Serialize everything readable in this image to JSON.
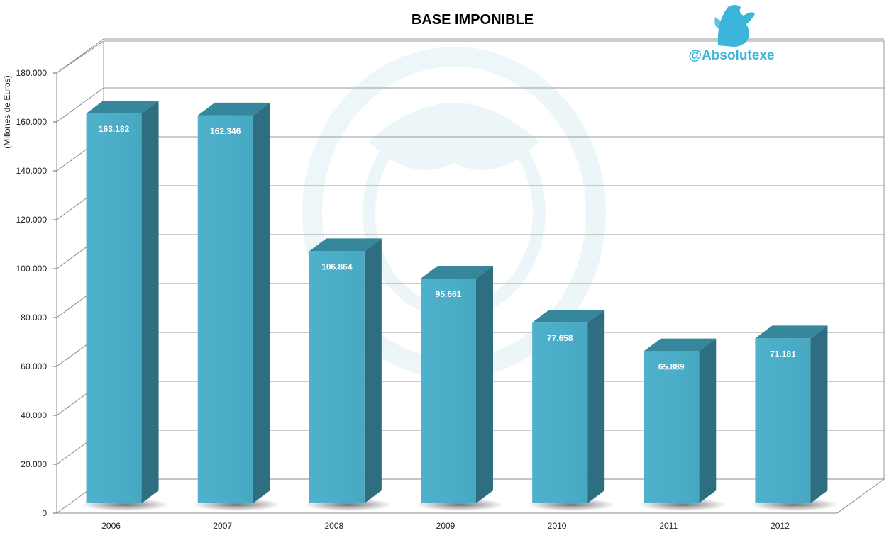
{
  "chart_data": {
    "type": "bar",
    "title": "BASE IMPONIBLE",
    "ylabel": "(Millones de Euros)",
    "xlabel": "",
    "categories": [
      "2006",
      "2007",
      "2008",
      "2009",
      "2010",
      "2011",
      "2012"
    ],
    "values": [
      163182,
      162346,
      106864,
      95661,
      77658,
      65889,
      71181
    ],
    "data_labels": [
      "163.182",
      "162.346",
      "106.864",
      "95.661",
      "77.658",
      "65.889",
      "71.181"
    ],
    "ylim": [
      0,
      180000
    ],
    "yticks": [
      0,
      20000,
      40000,
      60000,
      80000,
      100000,
      120000,
      140000,
      160000,
      180000
    ],
    "ytick_labels": [
      "0",
      "20.000",
      "40.000",
      "60.000",
      "80.000",
      "100.000",
      "120.000",
      "140.000",
      "160.000",
      "180.000"
    ],
    "grid": true,
    "style": "3d-column",
    "colors": {
      "bar_front": "#4BACC6",
      "bar_side": "#2E6E80",
      "bar_top": "#36879C",
      "watermark": "#4BACC6"
    }
  },
  "branding": {
    "handle": "@Absolutexe",
    "logo_icon": "griffin-logo-icon",
    "color": "#3BB5DA"
  }
}
